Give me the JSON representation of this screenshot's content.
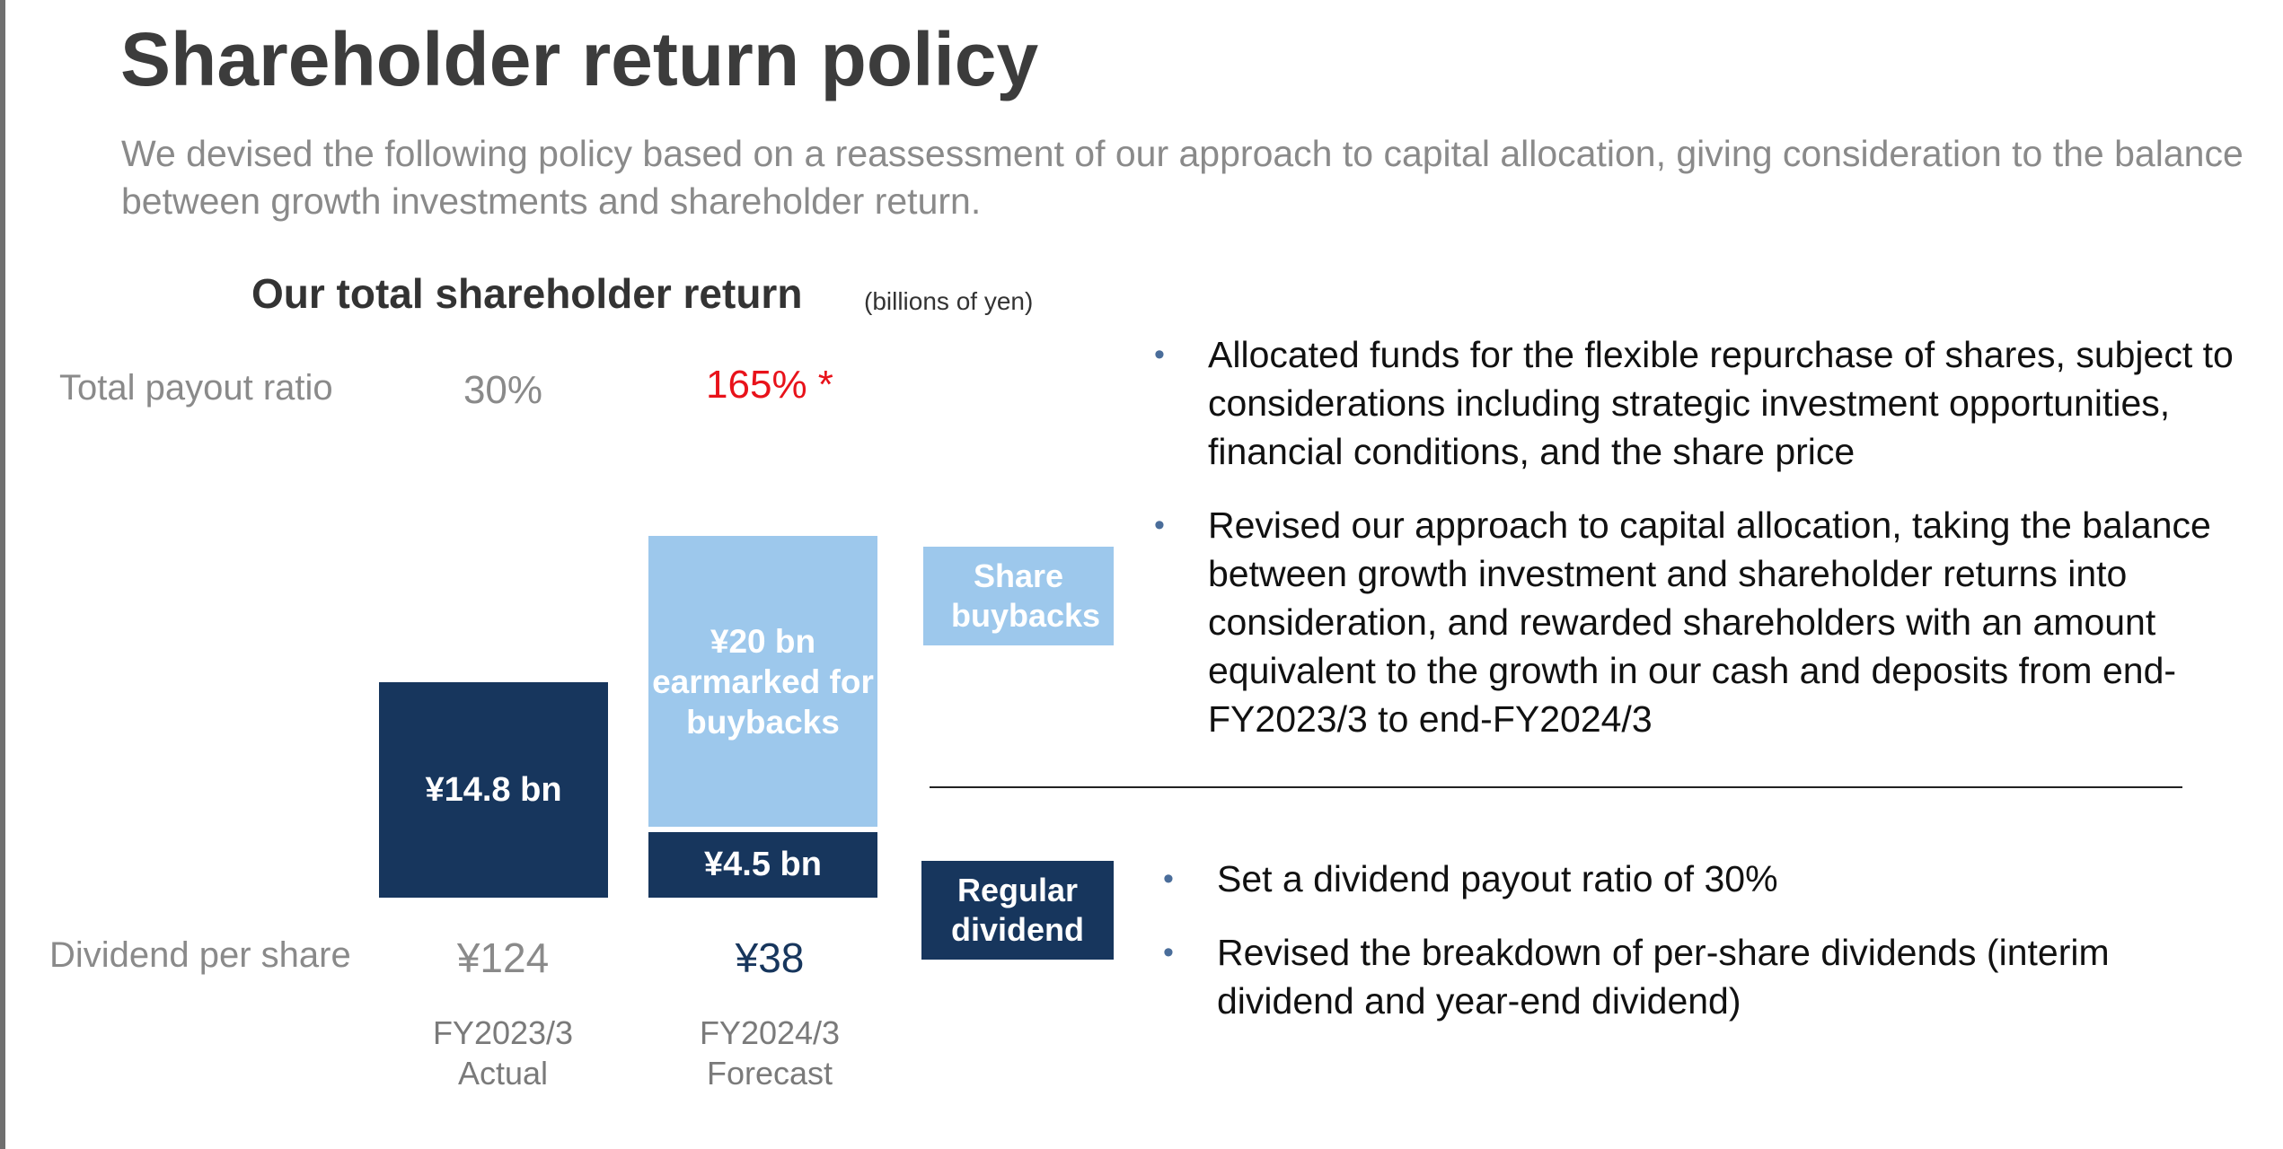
{
  "title": "Shareholder return policy",
  "subtitle": "We devised the following policy based on a reassessment of our approach to capital allocation, giving consideration to the balance between growth investments and shareholder return.",
  "chart_data": {
    "type": "bar",
    "stacked": true,
    "title": "Our total shareholder return",
    "unit": "(billions  of yen)",
    "categories": [
      "FY2023/3\nActual",
      "FY2024/3\nForecast"
    ],
    "category_lines": [
      [
        "FY2023/3",
        "Actual"
      ],
      [
        "FY2024/3",
        "Forecast"
      ]
    ],
    "series": [
      {
        "name": "Regular dividend",
        "color": "#17365d",
        "values": [
          14.8,
          4.5
        ],
        "labels": [
          "¥14.8 bn",
          "¥4.5 bn"
        ]
      },
      {
        "name": "Share buybacks",
        "color": "#9dc8ec",
        "values": [
          0,
          20
        ],
        "labels": [
          "",
          "¥20 bn earmarked for buybacks"
        ]
      }
    ],
    "legend": [
      "Share buybacks",
      "Regular dividend"
    ],
    "row_labels": {
      "payout_ratio": "Total payout ratio",
      "dividend_per_share": "Dividend per share"
    },
    "payout_ratio": [
      "30%",
      "165% *"
    ],
    "dividend_per_share": [
      "¥124",
      "¥38"
    ],
    "colors": {
      "dark": "#17365d",
      "light": "#9dc8ec",
      "highlight": "#e8121a"
    }
  },
  "buyback_notes": [
    "Allocated funds for the flexible repurchase of shares, subject to considerations including strategic investment opportunities, financial conditions, and the share price",
    "Revised our approach to capital allocation, taking the balance between growth investment and shareholder returns into consideration, and rewarded shareholders with an amount equivalent to the growth in our cash and deposits from end-FY2023/3 to end-FY2024/3"
  ],
  "dividend_notes": [
    "Set a dividend payout ratio of 30%",
    "Revised the breakdown of per-share dividends (interim dividend and year-end dividend)"
  ]
}
